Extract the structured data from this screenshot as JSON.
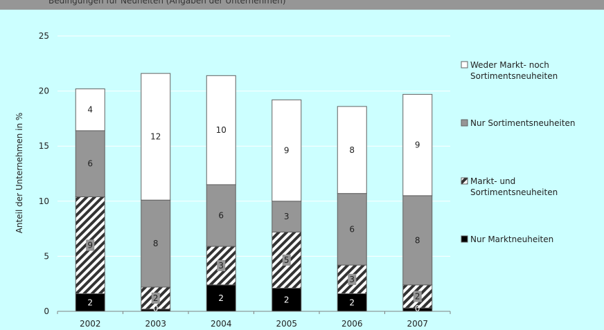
{
  "header": {
    "title": "Bedingungen für Neuheiten (Angaben der Unternehmen)"
  },
  "chart_data": {
    "type": "bar",
    "stacked": true,
    "categories": [
      "2002",
      "2003",
      "2004",
      "2005",
      "2006",
      "2007"
    ],
    "ylabel": "Anteil der Unternehmen in %",
    "xlabel": "",
    "ylim": [
      0,
      25
    ],
    "yticks": [
      0,
      5,
      10,
      15,
      20,
      25
    ],
    "grid": true,
    "legend_position": "right",
    "series": [
      {
        "name": "Nur Marktneuheiten",
        "pattern": "solid",
        "color": "#000000",
        "values": [
          1.6,
          0.2,
          2.4,
          2.1,
          1.6,
          0.3
        ],
        "labels": [
          "2",
          "0",
          "2",
          "2",
          "2",
          "0"
        ]
      },
      {
        "name": "Markt- und Sortimentsneuheiten",
        "pattern": "hatch",
        "color": "#333333",
        "values": [
          8.8,
          2.0,
          3.5,
          5.1,
          2.6,
          2.1
        ],
        "labels": [
          "9",
          "2",
          "3",
          "5",
          "3",
          "2"
        ]
      },
      {
        "name": "Nur Sortimentsneuheiten",
        "pattern": "solid",
        "color": "#969696",
        "values": [
          6.0,
          7.9,
          5.6,
          2.8,
          6.5,
          8.1
        ],
        "labels": [
          "6",
          "8",
          "6",
          "3",
          "6",
          "8"
        ]
      },
      {
        "name": "Weder Markt- noch Sortimentsneuheiten",
        "pattern": "solid",
        "color": "#ffffff",
        "values": [
          3.8,
          11.5,
          9.9,
          9.2,
          7.9,
          9.2
        ],
        "labels": [
          "4",
          "12",
          "10",
          "9",
          "8",
          "9"
        ]
      }
    ],
    "legend": [
      {
        "lines": [
          "Weder Markt- noch",
          "Sortimentsneuheiten"
        ],
        "series_index": 3
      },
      {
        "lines": [
          "Nur Sortimentsneuheiten"
        ],
        "series_index": 2
      },
      {
        "lines": [
          "Markt- und",
          "Sortimentsneuheiten"
        ],
        "series_index": 1
      },
      {
        "lines": [
          "Nur Marktneuheiten"
        ],
        "series_index": 0
      }
    ]
  }
}
